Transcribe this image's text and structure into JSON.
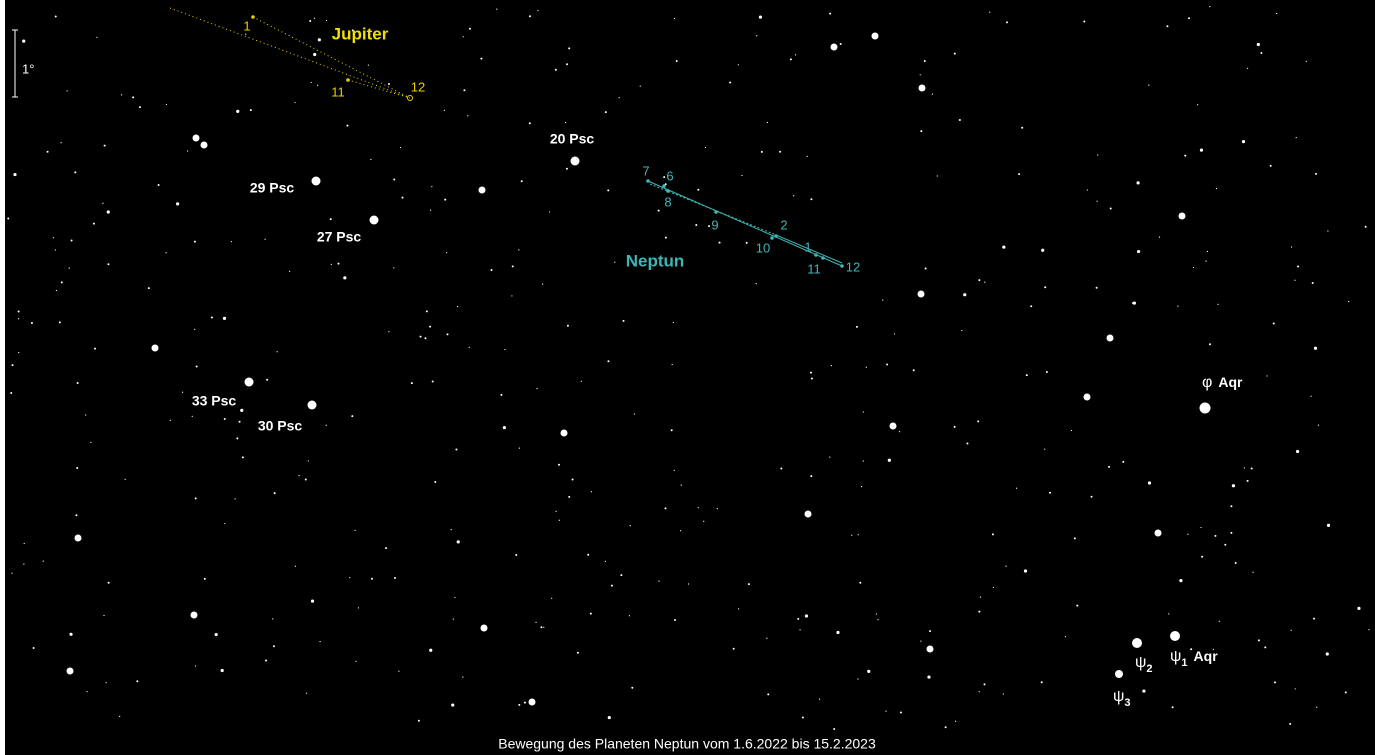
{
  "scale_label": "1°",
  "caption": "Bewegung des Planeten Neptun vom 1.6.2022 bis 15.2.2023",
  "planets": [
    {
      "name": "Jupiter",
      "months": [
        "1",
        "11",
        "12"
      ]
    },
    {
      "name": "Neptun",
      "months": [
        "7",
        "6",
        "8",
        "9",
        "2",
        "10",
        "1",
        "11",
        "12"
      ]
    }
  ],
  "stars": [
    {
      "label": "20 Psc"
    },
    {
      "label": "29 Psc"
    },
    {
      "label": "27 Psc"
    },
    {
      "label": "33 Psc"
    },
    {
      "label": "30 Psc"
    }
  ],
  "greek_stars": [
    {
      "letter": "φ",
      "index": "",
      "suffix": "Aqr"
    },
    {
      "letter": "ψ",
      "index": "2",
      "suffix": ""
    },
    {
      "letter": "ψ",
      "index": "1",
      "suffix": "Aqr"
    },
    {
      "letter": "ψ",
      "index": "3",
      "suffix": ""
    }
  ]
}
